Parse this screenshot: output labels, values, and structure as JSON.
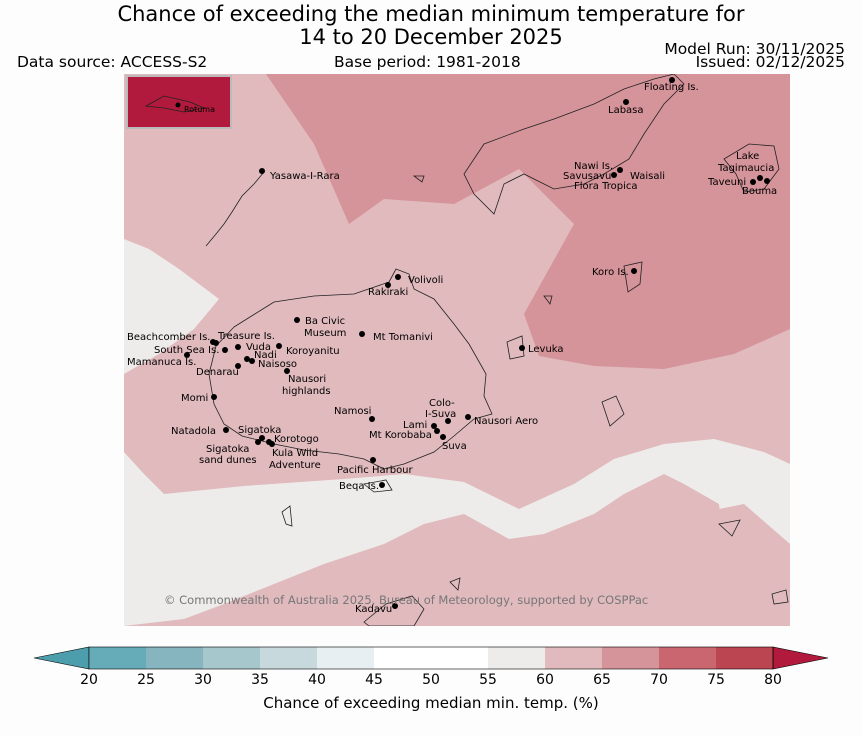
{
  "title_line1": "Chance of exceeding the median minimum temperature for",
  "title_line2": "14 to 20 December 2025",
  "data_source": "Data source: ACCESS-S2",
  "base_period": "Base period: 1981-2018",
  "model_run": "Model Run: 30/11/2025",
  "issued": "Issued: 02/12/2025",
  "copyright": "© Commonwealth of Australia 2025, Bureau of Meteorology, supported by COSPPac",
  "inset_label": "Rotuma",
  "places": {
    "floating": "Floating Is.",
    "labasa": "Labasa",
    "nawi": "Nawi Is.",
    "savusavu": "Savusavu",
    "waisali": "Waisali",
    "flora": "Flora Tropica",
    "lake1": "Lake",
    "lake2": "Tagimaucia",
    "taveuni": "Taveuni",
    "bouma": "Bouma",
    "yasawa": "Yasawa-I-Rara",
    "koro": "Koro Is.",
    "volivoli": "Volivoli",
    "rakiraki": "Rakiraki",
    "ba1": "Ba Civic",
    "ba2": "Museum",
    "tomanivi": "Mt Tomanivi",
    "beachcomber": "Beachcomber Is.",
    "treasure": "Treasure Is.",
    "southsea": "South Sea Is.",
    "vuda": "Vuda",
    "koroyanitu": "Koroyanitu",
    "nadi": "Nadi",
    "mamanuca": "Mamanuca Is.",
    "naisoso": "Naisoso",
    "denarau": "Denarau",
    "nausori1": "Nausori",
    "nausori2": "highlands",
    "levuka": "Levuka",
    "momi": "Momi",
    "namosi": "Namosi",
    "colo1": "Colo-",
    "colo2": "I-Suva",
    "nausoriaero": "Nausori Aero",
    "natadola": "Natadola",
    "sigatoka": "Sigatoka",
    "lami": "Lami",
    "korobaba": "Mt Korobaba",
    "korotogo": "Korotogo",
    "suva": "Suva",
    "dunes1": "Sigatoka",
    "dunes2": "sand dunes",
    "kula1": "Kula Wild",
    "kula2": "Adventure",
    "pacific": "Pacific Harbour",
    "beqa": "Beqa Is.",
    "kadavu": "Kadavu"
  },
  "colorbar": {
    "title": "Chance of exceeding median min. temp. (%)",
    "ticks": [
      "20",
      "25",
      "30",
      "35",
      "40",
      "45",
      "50",
      "55",
      "60",
      "65",
      "70",
      "75",
      "80"
    ],
    "colors": [
      "#66abb8",
      "#86b5c0",
      "#a6c7cc",
      "#c7d9dd",
      "#e7eff2",
      "#ffffff",
      "#ffffff",
      "#eeecea",
      "#e0babd",
      "#d5939a",
      "#c9666f",
      "#bc4552"
    ],
    "under_color": "#4c9eac",
    "over_color": "#b11a3c"
  }
}
